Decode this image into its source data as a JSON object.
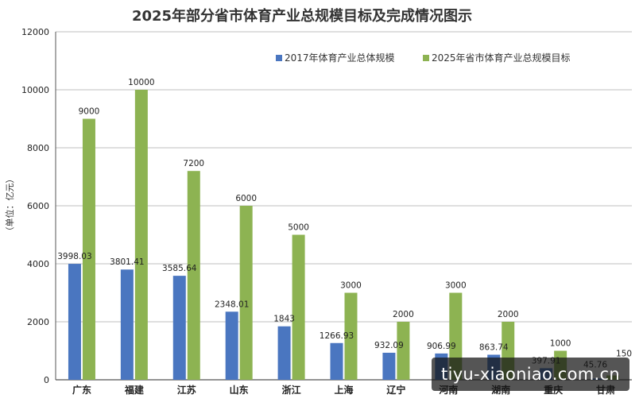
{
  "chart_data": {
    "type": "bar",
    "title": "2025年部分省市体育产业总规模目标及完成情况图示",
    "ylabel": "（单位：亿元）",
    "xlabel": "",
    "ylim": [
      0,
      12000
    ],
    "yticks": [
      0,
      2000,
      4000,
      6000,
      8000,
      10000,
      12000
    ],
    "grid": true,
    "legend_position": "top-right",
    "categories": [
      "广东",
      "福建",
      "江苏",
      "山东",
      "浙江",
      "上海",
      "辽宁",
      "河南",
      "湖南",
      "重庆",
      "甘肃"
    ],
    "series": [
      {
        "name": "2017年体育产业总体规模",
        "color": "#4a76c0",
        "values": [
          3998.03,
          3801.41,
          3585.64,
          2348.01,
          1843,
          1266.93,
          932.09,
          906.99,
          863.74,
          397.91,
          45.76
        ],
        "labels": [
          "3998.03",
          "3801.41",
          "3585.64",
          "2348.01",
          "1843",
          "1266.93",
          "932.09",
          "906.99",
          "863.74",
          "397.91",
          "45.76"
        ]
      },
      {
        "name": "2025年省市体育产业总规模目标",
        "color": "#8db352",
        "values": [
          9000,
          10000,
          7200,
          6000,
          5000,
          3000,
          2000,
          3000,
          2000,
          1000,
          150
        ],
        "labels": [
          "9000",
          "10000",
          "7200",
          "6000",
          "5000",
          "3000",
          "2000",
          "3000",
          "2000",
          "1000",
          "150"
        ]
      }
    ]
  },
  "watermark": {
    "text": "tiyu-xiaoniao.com.cn"
  }
}
